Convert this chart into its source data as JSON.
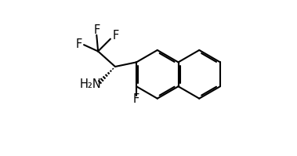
{
  "bg_color": "#ffffff",
  "line_color": "#000000",
  "line_width": 1.5,
  "font_size": 10.5,
  "fig_width": 3.79,
  "fig_height": 1.99,
  "dpi": 100,
  "xlim": [
    0,
    10
  ],
  "ylim": [
    0,
    5.25
  ]
}
